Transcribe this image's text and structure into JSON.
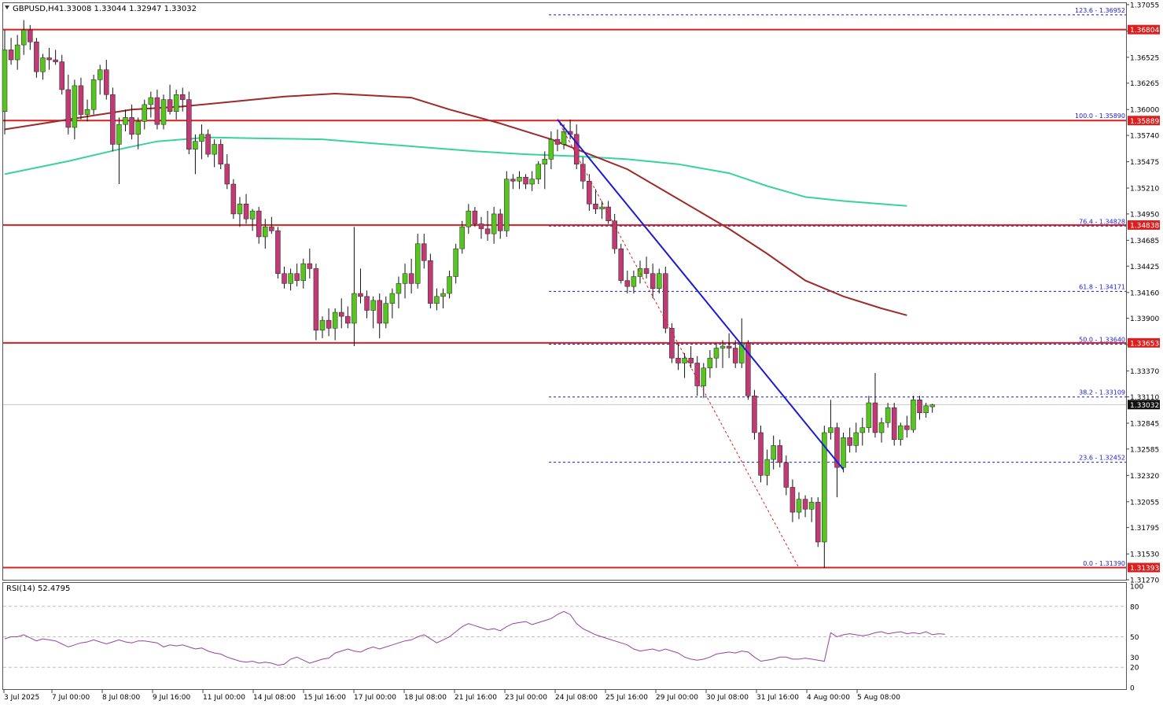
{
  "header": {
    "symbol": "GBPUSD,H4",
    "ohlc": "1.33008 1.33044 1.32947 1.33032"
  },
  "rsi_header": "RSI(14) 52.4795",
  "colors": {
    "bull": "#57c41f",
    "bear": "#c03a73",
    "wick": "#111111",
    "sma_fast": "#9e2a2a",
    "sma_slow": "#38d39a",
    "level_line": "#d92020",
    "trendline": "#1b1bd6",
    "fib_line": "#1b1bd6",
    "zigzag": "#d92020",
    "rsi": "#9a3fa5",
    "price_tag_bg": "#d92020",
    "current_tag_bg": "#111111"
  },
  "chart_data": {
    "type": "candlestick",
    "symbol": "GBPUSD",
    "timeframe": "H4",
    "ylim": [
      1.3127,
      1.3707
    ],
    "price_ticks": [
      "1.37055",
      "1.36790",
      "1.36525",
      "1.36265",
      "1.36000",
      "1.35740",
      "1.35475",
      "1.35210",
      "1.34950",
      "1.34685",
      "1.34425",
      "1.34160",
      "1.33900",
      "1.33635",
      "1.33370",
      "1.33110",
      "1.32845",
      "1.32585",
      "1.32320",
      "1.32055",
      "1.31795",
      "1.31530",
      "1.31270"
    ],
    "x_labels": [
      "3 Jul 2025",
      "7 Jul 00:00",
      "8 Jul 08:00",
      "9 Jul 16:00",
      "11 Jul 00:00",
      "14 Jul 08:00",
      "15 Jul 16:00",
      "17 Jul 00:00",
      "18 Jul 08:00",
      "21 Jul 16:00",
      "23 Jul 00:00",
      "24 Jul 08:00",
      "25 Jul 16:00",
      "29 Jul 00:00",
      "30 Jul 08:00",
      "31 Jul 16:00",
      "4 Aug 00:00",
      "5 Aug 08:00"
    ],
    "horizontal_levels": [
      {
        "label": "1.36804",
        "price": 1.36804
      },
      {
        "label": "1.35889",
        "price": 1.35889
      },
      {
        "label": "1.34838",
        "price": 1.34838
      },
      {
        "label": "1.33653",
        "price": 1.33653
      },
      {
        "label": "1.31393",
        "price": 1.31393
      }
    ],
    "current_price": {
      "label": "1.33032",
      "price": 1.33032
    },
    "fibonacci": [
      {
        "label": "123.6 - 1.36952",
        "price": 1.36952
      },
      {
        "label": "100.0 - 1.35890",
        "price": 1.3589
      },
      {
        "label": "76.4 - 1.34828",
        "price": 1.34828
      },
      {
        "label": "61.8 - 1.34171",
        "price": 1.34171
      },
      {
        "label": "50.0 - 1.33640",
        "price": 1.3364
      },
      {
        "label": "38.2 - 1.33109",
        "price": 1.33109
      },
      {
        "label": "23.6 - 1.32452",
        "price": 1.32452
      },
      {
        "label": "0.0 - 1.31390",
        "price": 1.3139
      }
    ],
    "candles": [
      [
        1.3598,
        1.368,
        1.3575,
        1.366
      ],
      [
        1.366,
        1.3672,
        1.3645,
        1.365
      ],
      [
        1.365,
        1.3675,
        1.364,
        1.3665
      ],
      [
        1.3665,
        1.369,
        1.3655,
        1.368
      ],
      [
        1.368,
        1.3685,
        1.366,
        1.3668
      ],
      [
        1.3668,
        1.3672,
        1.3632,
        1.3638
      ],
      [
        1.3638,
        1.3656,
        1.363,
        1.3652
      ],
      [
        1.3652,
        1.3662,
        1.364,
        1.365
      ],
      [
        1.365,
        1.366,
        1.3645,
        1.3648
      ],
      [
        1.3648,
        1.3655,
        1.3615,
        1.362
      ],
      [
        1.362,
        1.3635,
        1.3575,
        1.3582
      ],
      [
        1.3582,
        1.363,
        1.357,
        1.3624
      ],
      [
        1.3624,
        1.3632,
        1.359,
        1.3595
      ],
      [
        1.3595,
        1.361,
        1.3588,
        1.36
      ],
      [
        1.36,
        1.3635,
        1.3595,
        1.363
      ],
      [
        1.363,
        1.3645,
        1.3615,
        1.364
      ],
      [
        1.364,
        1.365,
        1.361,
        1.3615
      ],
      [
        1.3615,
        1.3622,
        1.3558,
        1.3565
      ],
      [
        1.3565,
        1.3592,
        1.3525,
        1.3585
      ],
      [
        1.3585,
        1.36,
        1.3578,
        1.3592
      ],
      [
        1.3592,
        1.3605,
        1.357,
        1.3575
      ],
      [
        1.3575,
        1.3592,
        1.356,
        1.3588
      ],
      [
        1.3588,
        1.361,
        1.358,
        1.3605
      ],
      [
        1.3605,
        1.3618,
        1.3592,
        1.3612
      ],
      [
        1.3612,
        1.362,
        1.358,
        1.3585
      ],
      [
        1.3585,
        1.3615,
        1.358,
        1.361
      ],
      [
        1.361,
        1.3625,
        1.3595,
        1.3598
      ],
      [
        1.3598,
        1.362,
        1.359,
        1.3615
      ],
      [
        1.3615,
        1.3622,
        1.3598,
        1.361
      ],
      [
        1.361,
        1.3618,
        1.3555,
        1.356
      ],
      [
        1.356,
        1.3575,
        1.3535,
        1.3568
      ],
      [
        1.3568,
        1.3585,
        1.355,
        1.3575
      ],
      [
        1.3575,
        1.358,
        1.3552,
        1.3555
      ],
      [
        1.3555,
        1.357,
        1.3542,
        1.3565
      ],
      [
        1.3565,
        1.357,
        1.354,
        1.3545
      ],
      [
        1.3545,
        1.3555,
        1.352,
        1.3525
      ],
      [
        1.3525,
        1.353,
        1.349,
        1.3495
      ],
      [
        1.3495,
        1.3512,
        1.3482,
        1.3505
      ],
      [
        1.3505,
        1.3515,
        1.3485,
        1.349
      ],
      [
        1.349,
        1.35,
        1.3478,
        1.3498
      ],
      [
        1.3498,
        1.3502,
        1.3465,
        1.3472
      ],
      [
        1.3472,
        1.349,
        1.346,
        1.3482
      ],
      [
        1.3482,
        1.3492,
        1.3475,
        1.3478
      ],
      [
        1.3478,
        1.3482,
        1.343,
        1.3435
      ],
      [
        1.3435,
        1.3442,
        1.342,
        1.3425
      ],
      [
        1.3425,
        1.344,
        1.3418,
        1.3435
      ],
      [
        1.3435,
        1.3445,
        1.3422,
        1.3428
      ],
      [
        1.3428,
        1.345,
        1.342,
        1.3445
      ],
      [
        1.3445,
        1.346,
        1.343,
        1.344
      ],
      [
        1.344,
        1.3445,
        1.3368,
        1.3378
      ],
      [
        1.3378,
        1.3392,
        1.337,
        1.3388
      ],
      [
        1.3388,
        1.34,
        1.3372,
        1.338
      ],
      [
        1.338,
        1.34,
        1.3368,
        1.3396
      ],
      [
        1.3396,
        1.341,
        1.338,
        1.3392
      ],
      [
        1.3392,
        1.3402,
        1.338,
        1.3385
      ],
      [
        1.3385,
        1.3482,
        1.3362,
        1.3415
      ],
      [
        1.3415,
        1.344,
        1.3405,
        1.3412
      ],
      [
        1.3412,
        1.3418,
        1.339,
        1.3398
      ],
      [
        1.3398,
        1.3412,
        1.338,
        1.3408
      ],
      [
        1.3408,
        1.3415,
        1.337,
        1.3385
      ],
      [
        1.3385,
        1.3412,
        1.338,
        1.3405
      ],
      [
        1.3405,
        1.342,
        1.339,
        1.3415
      ],
      [
        1.3415,
        1.3432,
        1.34,
        1.3425
      ],
      [
        1.3425,
        1.3445,
        1.341,
        1.3435
      ],
      [
        1.3435,
        1.345,
        1.3415,
        1.3425
      ],
      [
        1.3425,
        1.3475,
        1.342,
        1.3465
      ],
      [
        1.3465,
        1.3475,
        1.344,
        1.3448
      ],
      [
        1.3448,
        1.3455,
        1.34,
        1.3405
      ],
      [
        1.3405,
        1.342,
        1.3398,
        1.3412
      ],
      [
        1.3412,
        1.342,
        1.34,
        1.3415
      ],
      [
        1.3415,
        1.3438,
        1.341,
        1.3432
      ],
      [
        1.3432,
        1.3465,
        1.3425,
        1.346
      ],
      [
        1.346,
        1.3488,
        1.3455,
        1.3482
      ],
      [
        1.3482,
        1.3505,
        1.3475,
        1.3498
      ],
      [
        1.3498,
        1.3502,
        1.3482,
        1.3485
      ],
      [
        1.3485,
        1.3492,
        1.347,
        1.348
      ],
      [
        1.348,
        1.3498,
        1.3468,
        1.3475
      ],
      [
        1.3475,
        1.3502,
        1.3465,
        1.3495
      ],
      [
        1.3495,
        1.35,
        1.347,
        1.3478
      ],
      [
        1.3478,
        1.3538,
        1.3472,
        1.353
      ],
      [
        1.353,
        1.3535,
        1.352,
        1.3528
      ],
      [
        1.3528,
        1.3538,
        1.352,
        1.3532
      ],
      [
        1.3532,
        1.3535,
        1.352,
        1.3525
      ],
      [
        1.3525,
        1.3538,
        1.3518,
        1.353
      ],
      [
        1.353,
        1.3548,
        1.3525,
        1.3545
      ],
      [
        1.3545,
        1.3558,
        1.352,
        1.355
      ],
      [
        1.355,
        1.3578,
        1.354,
        1.357
      ],
      [
        1.357,
        1.358,
        1.3558,
        1.3565
      ],
      [
        1.3565,
        1.3585,
        1.356,
        1.3578
      ],
      [
        1.3578,
        1.359,
        1.357,
        1.3575
      ],
      [
        1.3575,
        1.3585,
        1.354,
        1.3545
      ],
      [
        1.3545,
        1.3552,
        1.352,
        1.3528
      ],
      [
        1.3528,
        1.3535,
        1.3498,
        1.3505
      ],
      [
        1.3505,
        1.352,
        1.3495,
        1.35
      ],
      [
        1.35,
        1.3508,
        1.349,
        1.3502
      ],
      [
        1.3502,
        1.3508,
        1.3485,
        1.3488
      ],
      [
        1.3488,
        1.3495,
        1.3455,
        1.346
      ],
      [
        1.346,
        1.3465,
        1.3425,
        1.3428
      ],
      [
        1.3428,
        1.3438,
        1.3415,
        1.3422
      ],
      [
        1.3422,
        1.3438,
        1.3415,
        1.3432
      ],
      [
        1.3432,
        1.3448,
        1.3425,
        1.344
      ],
      [
        1.344,
        1.3452,
        1.343,
        1.3435
      ],
      [
        1.3435,
        1.3445,
        1.341,
        1.342
      ],
      [
        1.342,
        1.344,
        1.3415,
        1.3435
      ],
      [
        1.3435,
        1.3442,
        1.3375,
        1.338
      ],
      [
        1.338,
        1.3385,
        1.3345,
        1.335
      ],
      [
        1.335,
        1.3365,
        1.3338,
        1.3345
      ],
      [
        1.3345,
        1.3355,
        1.333,
        1.335
      ],
      [
        1.335,
        1.3362,
        1.334,
        1.3345
      ],
      [
        1.3345,
        1.3352,
        1.3312,
        1.3322
      ],
      [
        1.3322,
        1.3345,
        1.331,
        1.334
      ],
      [
        1.334,
        1.3358,
        1.333,
        1.335
      ],
      [
        1.335,
        1.3365,
        1.334,
        1.336
      ],
      [
        1.336,
        1.3368,
        1.334,
        1.3362
      ],
      [
        1.3362,
        1.3375,
        1.335,
        1.336
      ],
      [
        1.336,
        1.3368,
        1.334,
        1.3345
      ],
      [
        1.3345,
        1.339,
        1.334,
        1.3365
      ],
      [
        1.3365,
        1.3368,
        1.3308,
        1.3312
      ],
      [
        1.3312,
        1.3318,
        1.3268,
        1.3275
      ],
      [
        1.3275,
        1.3282,
        1.3225,
        1.3232
      ],
      [
        1.3232,
        1.3258,
        1.3222,
        1.3248
      ],
      [
        1.3248,
        1.3272,
        1.3238,
        1.3262
      ],
      [
        1.3262,
        1.3268,
        1.324,
        1.3245
      ],
      [
        1.3245,
        1.3252,
        1.3212,
        1.322
      ],
      [
        1.322,
        1.3228,
        1.3185,
        1.3195
      ],
      [
        1.3195,
        1.3215,
        1.3188,
        1.3208
      ],
      [
        1.3208,
        1.3212,
        1.319,
        1.3198
      ],
      [
        1.3198,
        1.321,
        1.3185,
        1.3205
      ],
      [
        1.3205,
        1.321,
        1.316,
        1.3165
      ],
      [
        1.3165,
        1.3282,
        1.3139,
        1.3275
      ],
      [
        1.3275,
        1.3308,
        1.3268,
        1.328
      ],
      [
        1.328,
        1.3285,
        1.321,
        1.324
      ],
      [
        1.324,
        1.3275,
        1.3235,
        1.327
      ],
      [
        1.327,
        1.328,
        1.3255,
        1.3262
      ],
      [
        1.3262,
        1.3285,
        1.3255,
        1.3275
      ],
      [
        1.3275,
        1.329,
        1.3262,
        1.328
      ],
      [
        1.328,
        1.3312,
        1.3275,
        1.3305
      ],
      [
        1.3305,
        1.3335,
        1.327,
        1.3275
      ],
      [
        1.3275,
        1.329,
        1.3265,
        1.3285
      ],
      [
        1.3285,
        1.3305,
        1.328,
        1.33
      ],
      [
        1.33,
        1.3305,
        1.3262,
        1.3268
      ],
      [
        1.3268,
        1.3285,
        1.3262,
        1.3282
      ],
      [
        1.3282,
        1.3292,
        1.327,
        1.3278
      ],
      [
        1.3278,
        1.3312,
        1.3275,
        1.3308
      ],
      [
        1.3308,
        1.3312,
        1.3288,
        1.3295
      ],
      [
        1.3295,
        1.3305,
        1.329,
        1.3302
      ],
      [
        1.3301,
        1.3304,
        1.3295,
        1.3303
      ]
    ],
    "sma_fast": [
      [
        0,
        1.358
      ],
      [
        10,
        1.359
      ],
      [
        20,
        1.36
      ],
      [
        28,
        1.3603
      ],
      [
        36,
        1.3608
      ],
      [
        44,
        1.3613
      ],
      [
        52,
        1.3616
      ],
      [
        58,
        1.3614
      ],
      [
        64,
        1.3612
      ],
      [
        70,
        1.36
      ],
      [
        78,
        1.3586
      ],
      [
        86,
        1.357
      ],
      [
        92,
        1.3555
      ],
      [
        98,
        1.354
      ],
      [
        106,
        1.351
      ],
      [
        114,
        1.348
      ],
      [
        120,
        1.3455
      ],
      [
        126,
        1.3428
      ],
      [
        132,
        1.3412
      ],
      [
        138,
        1.34
      ],
      [
        142,
        1.3393
      ]
    ],
    "sma_slow": [
      [
        0,
        1.3535
      ],
      [
        10,
        1.3548
      ],
      [
        18,
        1.356
      ],
      [
        24,
        1.3568
      ],
      [
        32,
        1.3572
      ],
      [
        40,
        1.3571
      ],
      [
        50,
        1.357
      ],
      [
        58,
        1.3566
      ],
      [
        66,
        1.3562
      ],
      [
        74,
        1.3558
      ],
      [
        82,
        1.3555
      ],
      [
        90,
        1.3553
      ],
      [
        98,
        1.355
      ],
      [
        106,
        1.3545
      ],
      [
        114,
        1.3536
      ],
      [
        120,
        1.3523
      ],
      [
        126,
        1.3512
      ],
      [
        132,
        1.3508
      ],
      [
        138,
        1.3505
      ],
      [
        142,
        1.3503
      ]
    ],
    "trendline": {
      "from": [
        87,
        1.359
      ],
      "to": [
        132,
        1.3238
      ]
    },
    "zigzag": {
      "from": [
        87,
        1.359
      ],
      "to": [
        125,
        1.3139
      ]
    },
    "rsi": {
      "period": 14,
      "last": 52.4795,
      "levels": [
        20,
        50,
        80
      ],
      "ticks": [
        "100",
        "80",
        "50",
        "30",
        "20",
        "0"
      ],
      "values": [
        48,
        50,
        50,
        52,
        49,
        46,
        48,
        47,
        46,
        43,
        40,
        42,
        44,
        45,
        47,
        45,
        43,
        45,
        47,
        45,
        44,
        46,
        46,
        45,
        44,
        40,
        42,
        41,
        42,
        40,
        38,
        39,
        36,
        34,
        33,
        30,
        28,
        26,
        25,
        26,
        24,
        25,
        24,
        22,
        23,
        28,
        30,
        27,
        24,
        26,
        28,
        29,
        34,
        36,
        38,
        36,
        35,
        38,
        40,
        38,
        40,
        42,
        44,
        46,
        47,
        50,
        52,
        48,
        44,
        47,
        50,
        55,
        60,
        63,
        61,
        59,
        57,
        58,
        56,
        60,
        63,
        64,
        65,
        62,
        64,
        66,
        68,
        72,
        75,
        72,
        63,
        58,
        55,
        52,
        50,
        48,
        46,
        44,
        42,
        38,
        36,
        37,
        38,
        36,
        38,
        36,
        34,
        30,
        28,
        27,
        28,
        30,
        33,
        34,
        35,
        34,
        36,
        35,
        30,
        26,
        27,
        28,
        30,
        30,
        28,
        28,
        29,
        28,
        27,
        26,
        54,
        50,
        52,
        53,
        52,
        51,
        52,
        54,
        55,
        53,
        54,
        55,
        53,
        54,
        53,
        55,
        52,
        53,
        52.4795
      ]
    }
  }
}
